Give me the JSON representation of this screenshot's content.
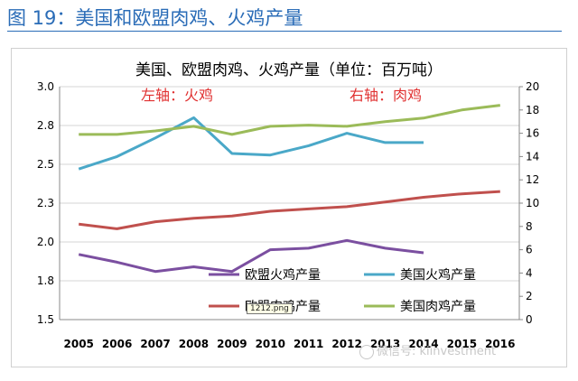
{
  "figure_title": "图 19：美国和欧盟肉鸡、火鸡产量",
  "tooltip": "1212.png",
  "watermark": "微信号: kiinvestment",
  "chart_data": {
    "type": "line",
    "title": "美国、欧盟肉鸡、火鸡产量（单位：百万吨）",
    "annotations": {
      "left_axis": "左轴：火鸡",
      "right_axis": "右轴：肉鸡"
    },
    "x": [
      "2005",
      "2006",
      "2007",
      "2008",
      "2009",
      "2010",
      "2011",
      "2012",
      "2013",
      "2014",
      "2015",
      "2016"
    ],
    "y_left": {
      "ylim": [
        1.5,
        3.0
      ],
      "ticks": [
        "1.5",
        "1.8",
        "2.0",
        "2.3",
        "2.5",
        "2.8",
        "3.0"
      ]
    },
    "y_right": {
      "ylim": [
        0,
        20
      ],
      "ticks": [
        "0",
        "2",
        "4",
        "6",
        "8",
        "10",
        "12",
        "14",
        "16",
        "18",
        "20"
      ]
    },
    "grid": true,
    "legend_position": "bottom-right",
    "series": [
      {
        "name": "欧盟火鸡产量",
        "axis": "left",
        "color": "#7b4fa0",
        "values": [
          1.92,
          1.87,
          1.81,
          1.84,
          1.81,
          1.95,
          1.96,
          2.01,
          1.96,
          1.93,
          null,
          null
        ]
      },
      {
        "name": "美国火鸡产量",
        "axis": "left",
        "color": "#4aa8c8",
        "values": [
          2.47,
          2.55,
          2.67,
          2.8,
          2.57,
          2.56,
          2.62,
          2.7,
          2.64,
          2.64,
          null,
          null
        ]
      },
      {
        "name": "欧盟肉鸡产量",
        "axis": "right",
        "color": "#c0504d",
        "values": [
          8.2,
          7.8,
          8.4,
          8.7,
          8.9,
          9.3,
          9.5,
          9.7,
          10.1,
          10.5,
          10.8,
          11.0
        ]
      },
      {
        "name": "美国肉鸡产量",
        "axis": "right",
        "color": "#9bbb59",
        "values": [
          15.9,
          15.9,
          16.2,
          16.6,
          15.9,
          16.6,
          16.7,
          16.6,
          17.0,
          17.3,
          18.0,
          18.4
        ]
      }
    ]
  }
}
